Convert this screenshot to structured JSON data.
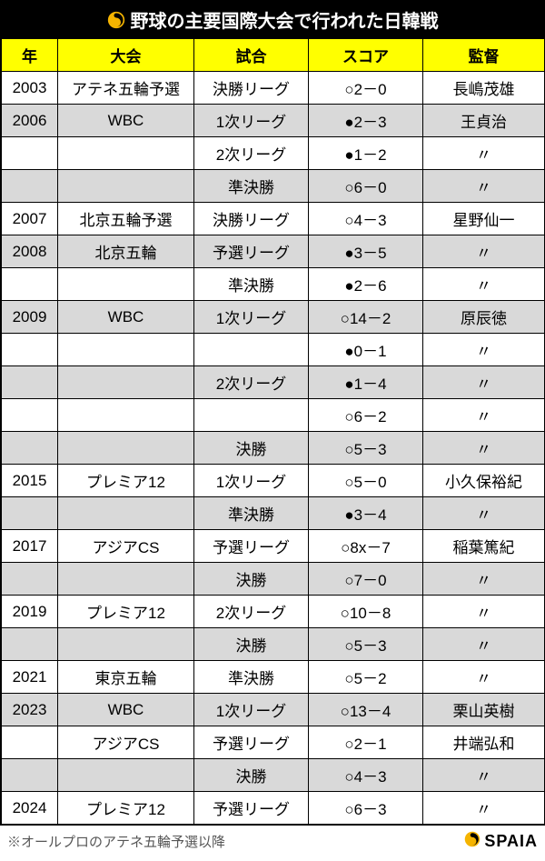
{
  "title": "野球の主要国際大会で行われた日韓戦",
  "columns": [
    "年",
    "大会",
    "試合",
    "スコア",
    "監督"
  ],
  "rows": [
    [
      "2003",
      "アテネ五輪予選",
      "決勝リーグ",
      "○2－0",
      "長嶋茂雄"
    ],
    [
      "2006",
      "WBC",
      "1次リーグ",
      "●2－3",
      "王貞治"
    ],
    [
      "",
      "",
      "2次リーグ",
      "●1－2",
      "〃"
    ],
    [
      "",
      "",
      "準決勝",
      "○6－0",
      "〃"
    ],
    [
      "2007",
      "北京五輪予選",
      "決勝リーグ",
      "○4－3",
      "星野仙一"
    ],
    [
      "2008",
      "北京五輪",
      "予選リーグ",
      "●3－5",
      "〃"
    ],
    [
      "",
      "",
      "準決勝",
      "●2－6",
      "〃"
    ],
    [
      "2009",
      "WBC",
      "1次リーグ",
      "○14－2",
      "原辰徳"
    ],
    [
      "",
      "",
      "",
      "●0－1",
      "〃"
    ],
    [
      "",
      "",
      "2次リーグ",
      "●1－4",
      "〃"
    ],
    [
      "",
      "",
      "",
      "○6－2",
      "〃"
    ],
    [
      "",
      "",
      "決勝",
      "○5－3",
      "〃"
    ],
    [
      "2015",
      "プレミア12",
      "1次リーグ",
      "○5－0",
      "小久保裕紀"
    ],
    [
      "",
      "",
      "準決勝",
      "●3－4",
      "〃"
    ],
    [
      "2017",
      "アジアCS",
      "予選リーグ",
      "○8x－7",
      "稲葉篤紀"
    ],
    [
      "",
      "",
      "決勝",
      "○7－0",
      "〃"
    ],
    [
      "2019",
      "プレミア12",
      "2次リーグ",
      "○10－8",
      "〃"
    ],
    [
      "",
      "",
      "決勝",
      "○5－3",
      "〃"
    ],
    [
      "2021",
      "東京五輪",
      "準決勝",
      "○5－2",
      "〃"
    ],
    [
      "2023",
      "WBC",
      "1次リーグ",
      "○13－4",
      "栗山英樹"
    ],
    [
      "",
      "アジアCS",
      "予選リーグ",
      "○2－1",
      "井端弘和"
    ],
    [
      "",
      "",
      "決勝",
      "○4－3",
      "〃"
    ],
    [
      "2024",
      "プレミア12",
      "予選リーグ",
      "○6－3",
      "〃"
    ]
  ],
  "footnote": "※オールプロのアテネ五輪予選以降",
  "brand": "SPAIA",
  "colors": {
    "header_bg": "#ffff00",
    "row_odd": "#ffffff",
    "row_even": "#d9d9d9",
    "title_bg": "#000000",
    "title_fg": "#ffffff",
    "logo_fill": "#f5b400"
  }
}
